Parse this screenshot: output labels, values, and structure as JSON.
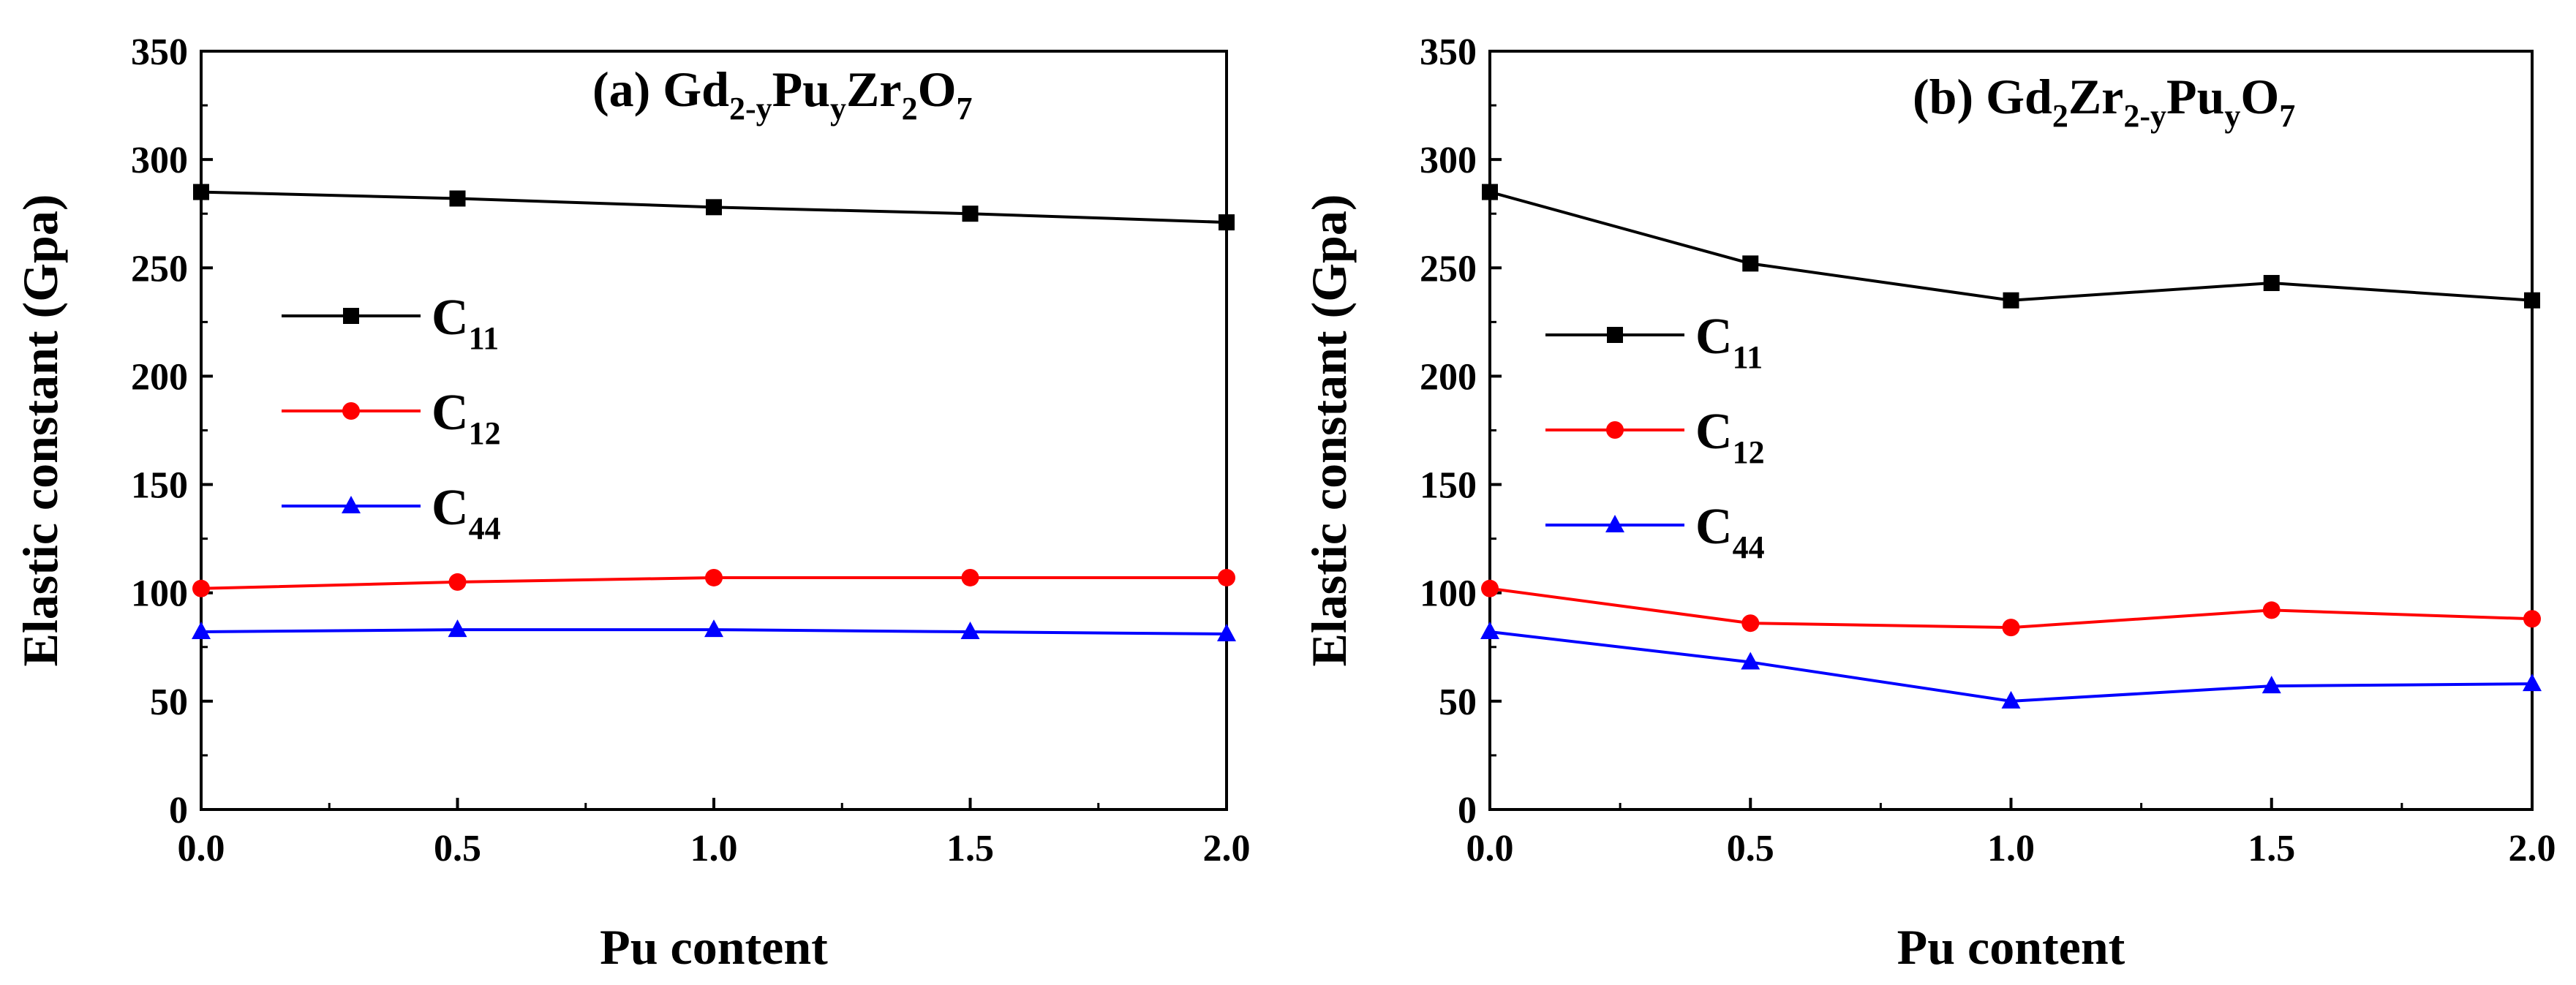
{
  "chart_data": [
    {
      "type": "line",
      "title": "(a) Gd2-yPuyZr2O7",
      "title_parts": [
        {
          "text": "(a) Gd",
          "sub": false
        },
        {
          "text": "2-y",
          "sub": true
        },
        {
          "text": "Pu",
          "sub": false
        },
        {
          "text": "y",
          "sub": true
        },
        {
          "text": "Zr",
          "sub": false
        },
        {
          "text": "2",
          "sub": true
        },
        {
          "text": "O",
          "sub": false
        },
        {
          "text": "7",
          "sub": true
        }
      ],
      "xlabel": "Pu content",
      "ylabel": "Elastic constant (Gpa)",
      "xlim": [
        0,
        2
      ],
      "ylim": [
        0,
        350
      ],
      "xticks": [
        "0.0",
        "0.5",
        "1.0",
        "1.5",
        "2.0"
      ],
      "yticks": [
        "0",
        "50",
        "100",
        "150",
        "200",
        "250",
        "300",
        "350"
      ],
      "x": [
        0.0,
        0.5,
        1.0,
        1.5,
        2.0
      ],
      "legend_position": "center-left",
      "series": [
        {
          "name": "C11",
          "base": "C",
          "subscript": "11",
          "color": "#000000",
          "marker": "square",
          "values": [
            285,
            282,
            278,
            275,
            271
          ]
        },
        {
          "name": "C12",
          "base": "C",
          "subscript": "12",
          "color": "#ff0000",
          "marker": "circle",
          "values": [
            102,
            105,
            107,
            107,
            107
          ]
        },
        {
          "name": "C44",
          "base": "C",
          "subscript": "44",
          "color": "#0000ff",
          "marker": "triangle",
          "values": [
            82,
            83,
            83,
            82,
            81
          ]
        }
      ]
    },
    {
      "type": "line",
      "title": "(b) Gd2Zr2-yPuyO7",
      "title_parts": [
        {
          "text": "(b) Gd",
          "sub": false
        },
        {
          "text": "2",
          "sub": true
        },
        {
          "text": "Zr",
          "sub": false
        },
        {
          "text": "2-y",
          "sub": true
        },
        {
          "text": "Pu",
          "sub": false
        },
        {
          "text": "y",
          "sub": true
        },
        {
          "text": "O",
          "sub": false
        },
        {
          "text": "7",
          "sub": true
        }
      ],
      "xlabel": "Pu content",
      "ylabel": "Elastic constant (Gpa)",
      "xlim": [
        0,
        2
      ],
      "ylim": [
        0,
        350
      ],
      "xticks": [
        "0.0",
        "0.5",
        "1.0",
        "1.5",
        "2.0"
      ],
      "yticks": [
        "0",
        "50",
        "100",
        "150",
        "200",
        "250",
        "300",
        "350"
      ],
      "x": [
        0.0,
        0.5,
        1.0,
        1.5,
        2.0
      ],
      "legend_position": "center-left",
      "series": [
        {
          "name": "C11",
          "base": "C",
          "subscript": "11",
          "color": "#000000",
          "marker": "square",
          "values": [
            285,
            252,
            235,
            243,
            235
          ]
        },
        {
          "name": "C12",
          "base": "C",
          "subscript": "12",
          "color": "#ff0000",
          "marker": "circle",
          "values": [
            102,
            86,
            84,
            92,
            88
          ]
        },
        {
          "name": "C44",
          "base": "C",
          "subscript": "44",
          "color": "#0000ff",
          "marker": "triangle",
          "values": [
            82,
            68,
            50,
            57,
            58
          ]
        }
      ]
    }
  ]
}
